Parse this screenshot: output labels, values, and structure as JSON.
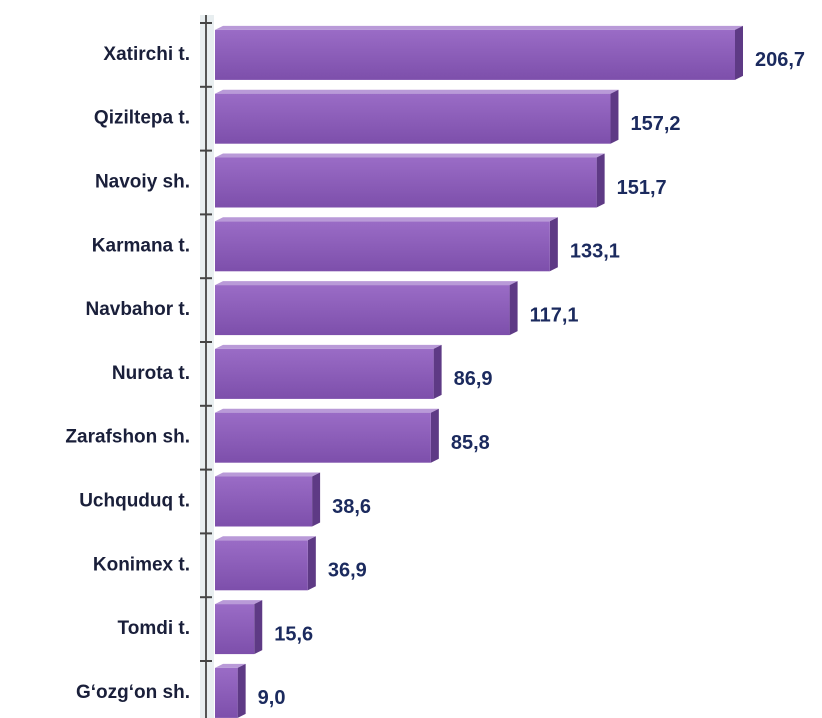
{
  "chart_data": {
    "type": "bar",
    "orientation": "horizontal",
    "categories": [
      "Xatirchi t.",
      "Qiziltepa t.",
      "Navoiy sh.",
      "Karmana t.",
      "Navbahor t.",
      "Nurota t.",
      "Zarafshon sh.",
      "Uchquduq t.",
      "Konimex t.",
      "Tomdi t.",
      "G‘ozg‘on sh."
    ],
    "values": [
      206.7,
      157.2,
      151.7,
      133.1,
      117.1,
      86.9,
      85.8,
      38.6,
      36.9,
      15.6,
      9.0
    ],
    "value_labels": [
      "206,7",
      "157,2",
      "151,7",
      "133,1",
      "117,1",
      "86,9",
      "85,8",
      "38,6",
      "36,9",
      "15,6",
      "9,0"
    ],
    "color": "#8b5cb8"
  }
}
